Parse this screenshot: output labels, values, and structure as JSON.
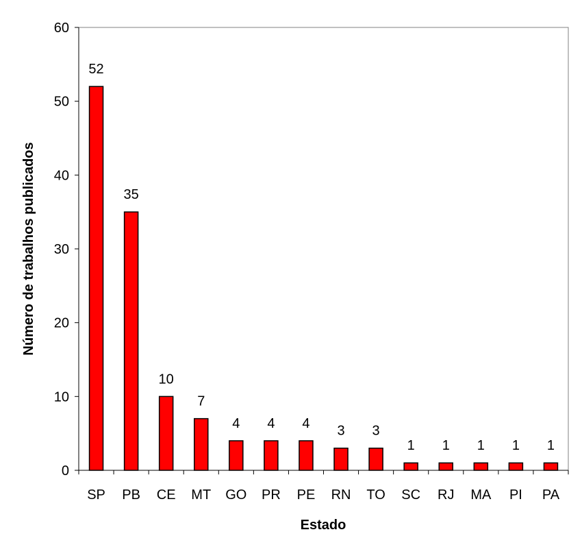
{
  "chart_data": {
    "type": "bar",
    "categories": [
      "SP",
      "PB",
      "CE",
      "MT",
      "GO",
      "PR",
      "PE",
      "RN",
      "TO",
      "SC",
      "RJ",
      "MA",
      "PI",
      "PA"
    ],
    "values": [
      52,
      35,
      10,
      7,
      4,
      4,
      4,
      3,
      3,
      1,
      1,
      1,
      1,
      1
    ],
    "xlabel": "Estado",
    "ylabel": "Número de trabalhos publicados",
    "ylim": [
      0,
      60
    ],
    "yticks": [
      0,
      10,
      20,
      30,
      40,
      50,
      60
    ],
    "grid": false,
    "legend": "none",
    "bar_color": "#ff0000",
    "bar_edge_color": "#000000",
    "data_labels": true
  }
}
